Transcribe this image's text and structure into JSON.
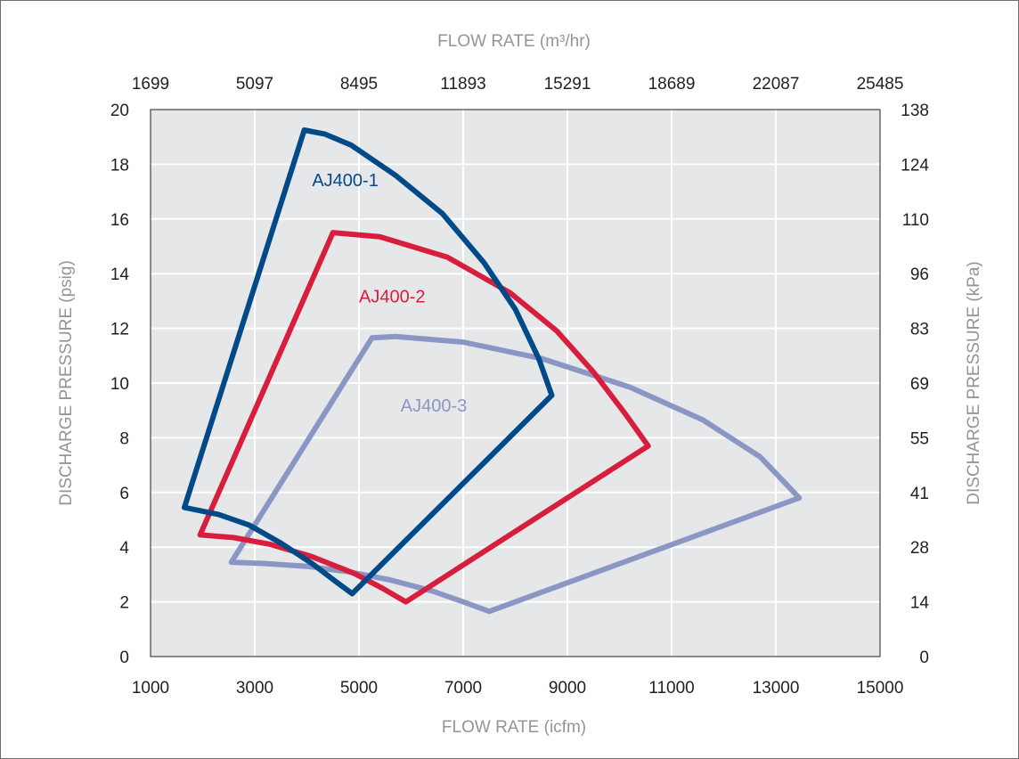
{
  "chart_data": {
    "type": "line",
    "x_bottom": {
      "label": "FLOW RATE (icfm)",
      "range": [
        1000,
        15000
      ],
      "ticks": [
        "1000",
        "3000",
        "5000",
        "7000",
        "9000",
        "11000",
        "13000",
        "15000"
      ]
    },
    "x_top": {
      "label": "FLOW RATE (m³/hr)",
      "ticks": [
        "1699",
        "5097",
        "8495",
        "11893",
        "15291",
        "18689",
        "22087",
        "25485"
      ]
    },
    "y_left": {
      "label": "DISCHARGE PRESSURE (psig)",
      "range": [
        0,
        20
      ],
      "ticks": [
        "0",
        "2",
        "4",
        "6",
        "8",
        "10",
        "12",
        "14",
        "16",
        "18",
        "20"
      ]
    },
    "y_right": {
      "label": "DISCHARGE PRESSURE (kPa)",
      "ticks": [
        "0",
        "14",
        "28",
        "41",
        "55",
        "69",
        "83",
        "96",
        "110",
        "124",
        "138"
      ]
    },
    "grid": true,
    "background": "#e6e7e8",
    "series": [
      {
        "name": "AJ400-1",
        "color": "#004b87",
        "points": [
          [
            1650,
            5.45
          ],
          [
            2300,
            5.2
          ],
          [
            2900,
            4.8
          ],
          [
            3500,
            4.15
          ],
          [
            4100,
            3.4
          ],
          [
            4550,
            2.75
          ],
          [
            4870,
            2.3
          ],
          [
            8700,
            9.55
          ],
          [
            8450,
            10.9
          ],
          [
            8000,
            12.7
          ],
          [
            7400,
            14.4
          ],
          [
            6600,
            16.2
          ],
          [
            5700,
            17.6
          ],
          [
            4850,
            18.7
          ],
          [
            4350,
            19.1
          ],
          [
            3950,
            19.25
          ],
          [
            1650,
            5.45
          ]
        ],
        "label_pos": [
          4100,
          17.2
        ]
      },
      {
        "name": "AJ400-2",
        "color": "#d71e3c",
        "points": [
          [
            1950,
            4.45
          ],
          [
            2600,
            4.35
          ],
          [
            3300,
            4.1
          ],
          [
            4100,
            3.65
          ],
          [
            4900,
            3.05
          ],
          [
            5450,
            2.5
          ],
          [
            5900,
            2.0
          ],
          [
            10550,
            7.7
          ],
          [
            10100,
            8.9
          ],
          [
            9500,
            10.4
          ],
          [
            8800,
            11.9
          ],
          [
            7900,
            13.3
          ],
          [
            6700,
            14.6
          ],
          [
            5400,
            15.35
          ],
          [
            4500,
            15.5
          ],
          [
            1950,
            4.45
          ]
        ],
        "label_pos": [
          5000,
          12.95
        ]
      },
      {
        "name": "AJ400-3",
        "color": "#8a96c4",
        "points": [
          [
            2550,
            3.45
          ],
          [
            3200,
            3.4
          ],
          [
            4000,
            3.3
          ],
          [
            4800,
            3.1
          ],
          [
            5600,
            2.8
          ],
          [
            6400,
            2.4
          ],
          [
            7000,
            2.0
          ],
          [
            7500,
            1.65
          ],
          [
            13450,
            5.8
          ],
          [
            12700,
            7.3
          ],
          [
            11600,
            8.65
          ],
          [
            10200,
            9.85
          ],
          [
            8500,
            10.9
          ],
          [
            7000,
            11.5
          ],
          [
            5700,
            11.7
          ],
          [
            5250,
            11.65
          ],
          [
            2550,
            3.45
          ]
        ],
        "label_pos": [
          5800,
          8.95
        ]
      }
    ]
  }
}
